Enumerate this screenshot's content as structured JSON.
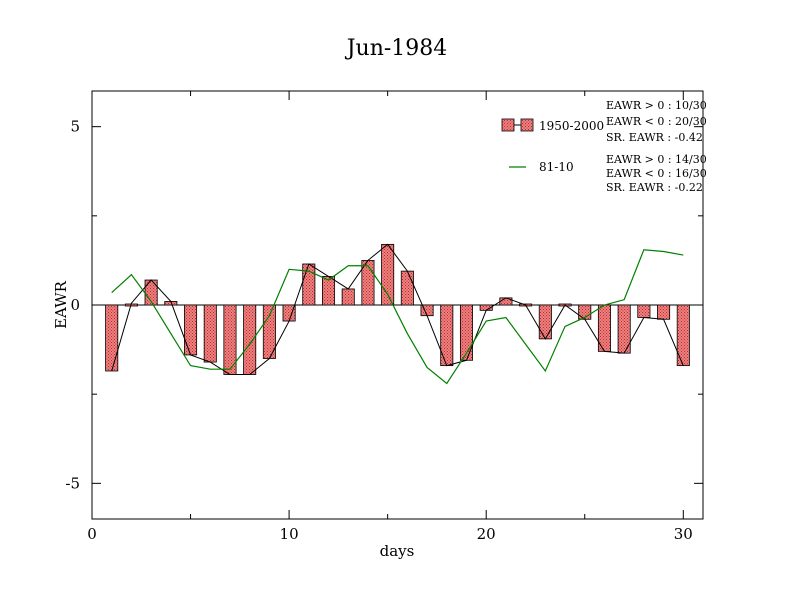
{
  "chart_data": {
    "type": "bar",
    "title": "Jun-1984",
    "xlabel": "days",
    "ylabel": "EAWR",
    "xlim": [
      0,
      31
    ],
    "ylim": [
      -6,
      6
    ],
    "xticks": [
      0,
      10,
      20,
      30
    ],
    "xtick_labels": [
      "0",
      "10",
      "20",
      "30"
    ],
    "yticks": [
      -5,
      0,
      5
    ],
    "ytick_labels": [
      "-5",
      "0",
      "5"
    ],
    "grid": false,
    "legend_position": "top-right",
    "series": [
      {
        "name": "1950-2000",
        "type": "bar+line",
        "color": "#e8575a",
        "line_color": "#000000",
        "x": [
          1,
          2,
          3,
          4,
          5,
          6,
          7,
          8,
          9,
          10,
          11,
          12,
          13,
          14,
          15,
          16,
          17,
          18,
          19,
          20,
          21,
          22,
          23,
          24,
          25,
          26,
          27,
          28,
          29,
          30
        ],
        "values": [
          -1.85,
          0.05,
          0.7,
          0.1,
          -1.4,
          -1.6,
          -1.95,
          -1.95,
          -1.5,
          -0.45,
          1.15,
          0.8,
          0.45,
          1.25,
          1.7,
          0.95,
          -0.3,
          -1.7,
          -1.55,
          -0.15,
          0.2,
          0.0,
          -0.95,
          0.0,
          -0.4,
          -1.3,
          -1.35,
          -0.35,
          -0.4,
          -1.7
        ]
      },
      {
        "name": "81-10",
        "type": "line",
        "color": "#008000",
        "x": [
          1,
          2,
          3,
          4,
          5,
          6,
          7,
          8,
          9,
          10,
          11,
          12,
          13,
          14,
          15,
          16,
          17,
          18,
          19,
          20,
          21,
          22,
          23,
          24,
          25,
          26,
          27,
          28,
          29,
          30
        ],
        "values": [
          0.35,
          0.85,
          0.1,
          -0.8,
          -1.7,
          -1.8,
          -1.8,
          -1.1,
          -0.3,
          1.0,
          0.95,
          0.7,
          1.1,
          1.1,
          0.3,
          -0.8,
          -1.75,
          -2.2,
          -1.35,
          -0.45,
          -0.35,
          -1.1,
          -1.85,
          -0.6,
          -0.35,
          0.0,
          0.15,
          1.55,
          1.5,
          1.4
        ]
      }
    ],
    "stats": [
      [
        "EAWR > 0 : 10/30",
        "EAWR < 0 : 20/30",
        "SR. EAWR : -0.42"
      ],
      [
        "EAWR > 0 : 14/30",
        "EAWR < 0 : 16/30",
        "SR. EAWR : -0.22"
      ]
    ]
  }
}
